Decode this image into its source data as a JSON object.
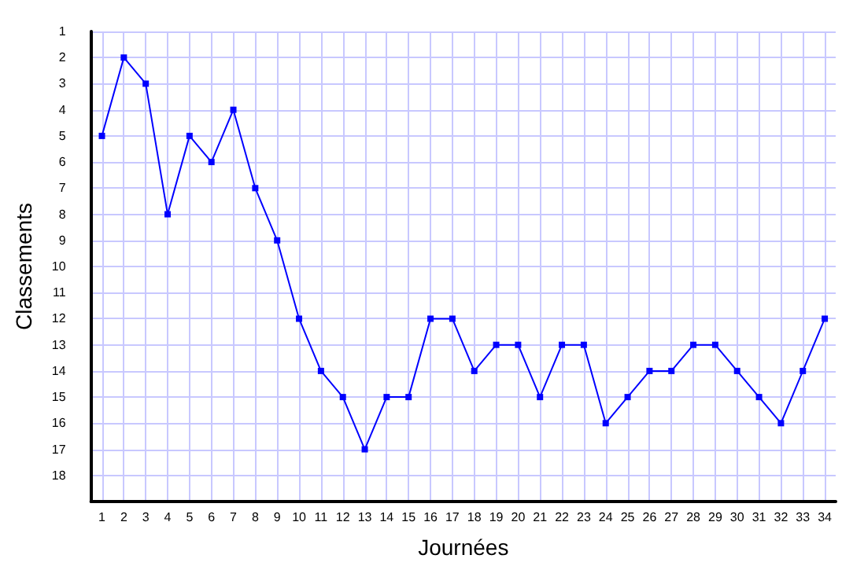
{
  "chart_data": {
    "type": "line",
    "xlabel": "Journées",
    "ylabel": "Classements",
    "x": [
      1,
      2,
      3,
      4,
      5,
      6,
      7,
      8,
      9,
      10,
      11,
      12,
      13,
      14,
      15,
      16,
      17,
      18,
      19,
      20,
      21,
      22,
      23,
      24,
      25,
      26,
      27,
      28,
      29,
      30,
      31,
      32,
      33,
      34
    ],
    "series": [
      {
        "color": "#0000ff",
        "values": [
          5,
          2,
          3,
          8,
          5,
          6,
          4,
          7,
          9,
          12,
          14,
          15,
          17,
          15,
          15,
          12,
          12,
          14,
          13,
          13,
          15,
          13,
          13,
          16,
          15,
          14,
          14,
          13,
          13,
          14,
          15,
          16,
          14,
          12
        ]
      }
    ],
    "xlim": [
      0.5,
      34.5
    ],
    "xticks": [
      1,
      2,
      3,
      4,
      5,
      6,
      7,
      8,
      9,
      10,
      11,
      12,
      13,
      14,
      15,
      16,
      17,
      18,
      19,
      20,
      21,
      22,
      23,
      24,
      25,
      26,
      27,
      28,
      29,
      30,
      31,
      32,
      33,
      34
    ],
    "ylim": [
      19,
      1
    ],
    "yticks": [
      1,
      2,
      3,
      4,
      5,
      6,
      7,
      8,
      9,
      10,
      11,
      12,
      13,
      14,
      15,
      16,
      17,
      18
    ],
    "grid": true,
    "marker": "square",
    "line_style": "solid"
  }
}
